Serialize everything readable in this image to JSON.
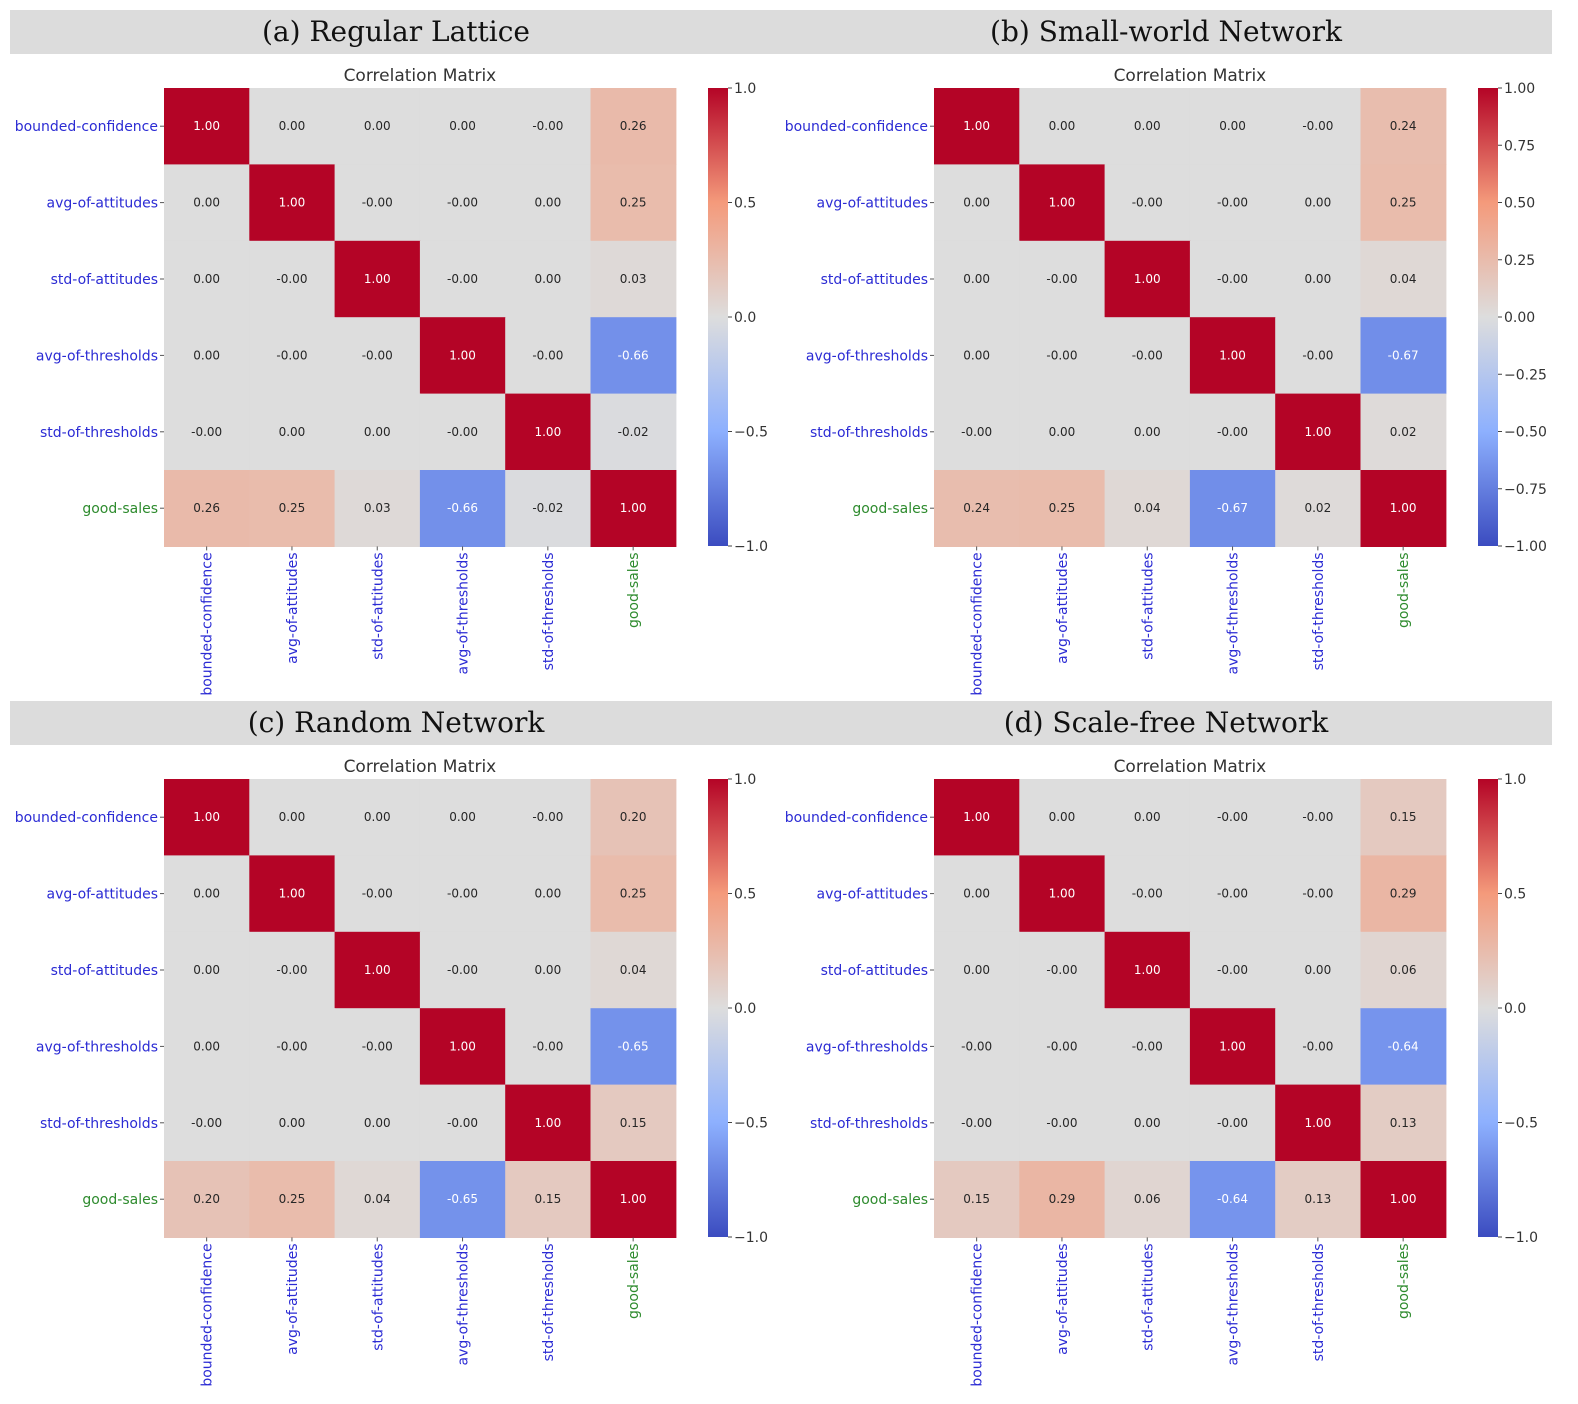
{
  "labels": [
    "bounded-confidence",
    "avg-of-attitudes",
    "std-of-attitudes",
    "avg-of-thresholds",
    "std-of-thresholds",
    "good-sales"
  ],
  "label_colors": [
    "#2b2bd4",
    "#2b2bd4",
    "#2b2bd4",
    "#2b2bd4",
    "#2b2bd4",
    "#2e8b2e"
  ],
  "colormap": "coolwarm",
  "chart_data": [
    {
      "type": "heatmap",
      "panel_title": "(a) Regular Lattice",
      "title": "Correlation Matrix",
      "vmin": -1,
      "vmax": 1,
      "colorbar_ticks": [
        "1.0",
        "0.5",
        "0.0",
        "−0.5",
        "−1.0"
      ],
      "colorbar_values": [
        1.0,
        0.5,
        0.0,
        -0.5,
        -1.0
      ],
      "matrix": [
        [
          1.0,
          0.0,
          0.0,
          0.0,
          -0.0,
          0.26
        ],
        [
          0.0,
          1.0,
          -0.0,
          -0.0,
          0.0,
          0.25
        ],
        [
          0.0,
          -0.0,
          1.0,
          -0.0,
          0.0,
          0.03
        ],
        [
          0.0,
          -0.0,
          -0.0,
          1.0,
          -0.0,
          -0.66
        ],
        [
          -0.0,
          0.0,
          0.0,
          -0.0,
          1.0,
          -0.02
        ],
        [
          0.26,
          0.25,
          0.03,
          -0.66,
          -0.02,
          1.0
        ]
      ],
      "cell_labels": [
        [
          "1.00",
          "0.00",
          "0.00",
          "0.00",
          "-0.00",
          "0.26"
        ],
        [
          "0.00",
          "1.00",
          "-0.00",
          "-0.00",
          "0.00",
          "0.25"
        ],
        [
          "0.00",
          "-0.00",
          "1.00",
          "-0.00",
          "0.00",
          "0.03"
        ],
        [
          "0.00",
          "-0.00",
          "-0.00",
          "1.00",
          "-0.00",
          "-0.66"
        ],
        [
          "-0.00",
          "0.00",
          "0.00",
          "-0.00",
          "1.00",
          "-0.02"
        ],
        [
          "0.26",
          "0.25",
          "0.03",
          "-0.66",
          "-0.02",
          "1.00"
        ]
      ]
    },
    {
      "type": "heatmap",
      "panel_title": "(b) Small-world Network",
      "title": "Correlation Matrix",
      "vmin": -1,
      "vmax": 1,
      "colorbar_ticks": [
        "1.00",
        "0.75",
        "0.50",
        "0.25",
        "0.00",
        "−0.25",
        "−0.50",
        "−0.75",
        "−1.00"
      ],
      "colorbar_values": [
        1.0,
        0.75,
        0.5,
        0.25,
        0.0,
        -0.25,
        -0.5,
        -0.75,
        -1.0
      ],
      "matrix": [
        [
          1.0,
          0.0,
          0.0,
          0.0,
          -0.0,
          0.24
        ],
        [
          0.0,
          1.0,
          -0.0,
          -0.0,
          0.0,
          0.25
        ],
        [
          0.0,
          -0.0,
          1.0,
          -0.0,
          0.0,
          0.04
        ],
        [
          0.0,
          -0.0,
          -0.0,
          1.0,
          -0.0,
          -0.67
        ],
        [
          -0.0,
          0.0,
          0.0,
          -0.0,
          1.0,
          0.02
        ],
        [
          0.24,
          0.25,
          0.04,
          -0.67,
          0.02,
          1.0
        ]
      ],
      "cell_labels": [
        [
          "1.00",
          "0.00",
          "0.00",
          "0.00",
          "-0.00",
          "0.24"
        ],
        [
          "0.00",
          "1.00",
          "-0.00",
          "-0.00",
          "0.00",
          "0.25"
        ],
        [
          "0.00",
          "-0.00",
          "1.00",
          "-0.00",
          "0.00",
          "0.04"
        ],
        [
          "0.00",
          "-0.00",
          "-0.00",
          "1.00",
          "-0.00",
          "-0.67"
        ],
        [
          "-0.00",
          "0.00",
          "0.00",
          "-0.00",
          "1.00",
          "0.02"
        ],
        [
          "0.24",
          "0.25",
          "0.04",
          "-0.67",
          "0.02",
          "1.00"
        ]
      ]
    },
    {
      "type": "heatmap",
      "panel_title": "(c) Random Network",
      "title": "Correlation Matrix",
      "vmin": -1,
      "vmax": 1,
      "colorbar_ticks": [
        "1.0",
        "0.5",
        "0.0",
        "−0.5",
        "−1.0"
      ],
      "colorbar_values": [
        1.0,
        0.5,
        0.0,
        -0.5,
        -1.0
      ],
      "matrix": [
        [
          1.0,
          0.0,
          0.0,
          0.0,
          -0.0,
          0.2
        ],
        [
          0.0,
          1.0,
          -0.0,
          -0.0,
          0.0,
          0.25
        ],
        [
          0.0,
          -0.0,
          1.0,
          -0.0,
          0.0,
          0.04
        ],
        [
          0.0,
          -0.0,
          -0.0,
          1.0,
          -0.0,
          -0.65
        ],
        [
          -0.0,
          0.0,
          0.0,
          -0.0,
          1.0,
          0.15
        ],
        [
          0.2,
          0.25,
          0.04,
          -0.65,
          0.15,
          1.0
        ]
      ],
      "cell_labels": [
        [
          "1.00",
          "0.00",
          "0.00",
          "0.00",
          "-0.00",
          "0.20"
        ],
        [
          "0.00",
          "1.00",
          "-0.00",
          "-0.00",
          "0.00",
          "0.25"
        ],
        [
          "0.00",
          "-0.00",
          "1.00",
          "-0.00",
          "0.00",
          "0.04"
        ],
        [
          "0.00",
          "-0.00",
          "-0.00",
          "1.00",
          "-0.00",
          "-0.65"
        ],
        [
          "-0.00",
          "0.00",
          "0.00",
          "-0.00",
          "1.00",
          "0.15"
        ],
        [
          "0.20",
          "0.25",
          "0.04",
          "-0.65",
          "0.15",
          "1.00"
        ]
      ]
    },
    {
      "type": "heatmap",
      "panel_title": "(d) Scale-free Network",
      "title": "Correlation Matrix",
      "vmin": -1,
      "vmax": 1,
      "colorbar_ticks": [
        "1.0",
        "0.5",
        "0.0",
        "−0.5",
        "−1.0"
      ],
      "colorbar_values": [
        1.0,
        0.5,
        0.0,
        -0.5,
        -1.0
      ],
      "matrix": [
        [
          1.0,
          0.0,
          0.0,
          -0.0,
          -0.0,
          0.15
        ],
        [
          0.0,
          1.0,
          -0.0,
          -0.0,
          -0.0,
          0.29
        ],
        [
          0.0,
          -0.0,
          1.0,
          -0.0,
          0.0,
          0.06
        ],
        [
          -0.0,
          -0.0,
          -0.0,
          1.0,
          -0.0,
          -0.64
        ],
        [
          -0.0,
          -0.0,
          0.0,
          -0.0,
          1.0,
          0.13
        ],
        [
          0.15,
          0.29,
          0.06,
          -0.64,
          0.13,
          1.0
        ]
      ],
      "cell_labels": [
        [
          "1.00",
          "0.00",
          "0.00",
          "-0.00",
          "-0.00",
          "0.15"
        ],
        [
          "0.00",
          "1.00",
          "-0.00",
          "-0.00",
          "-0.00",
          "0.29"
        ],
        [
          "0.00",
          "-0.00",
          "1.00",
          "-0.00",
          "0.00",
          "0.06"
        ],
        [
          "-0.00",
          "-0.00",
          "-0.00",
          "1.00",
          "-0.00",
          "-0.64"
        ],
        [
          "-0.00",
          "-0.00",
          "0.00",
          "-0.00",
          "1.00",
          "0.13"
        ],
        [
          "0.15",
          "0.29",
          "0.06",
          "-0.64",
          "0.13",
          "1.00"
        ]
      ]
    }
  ]
}
